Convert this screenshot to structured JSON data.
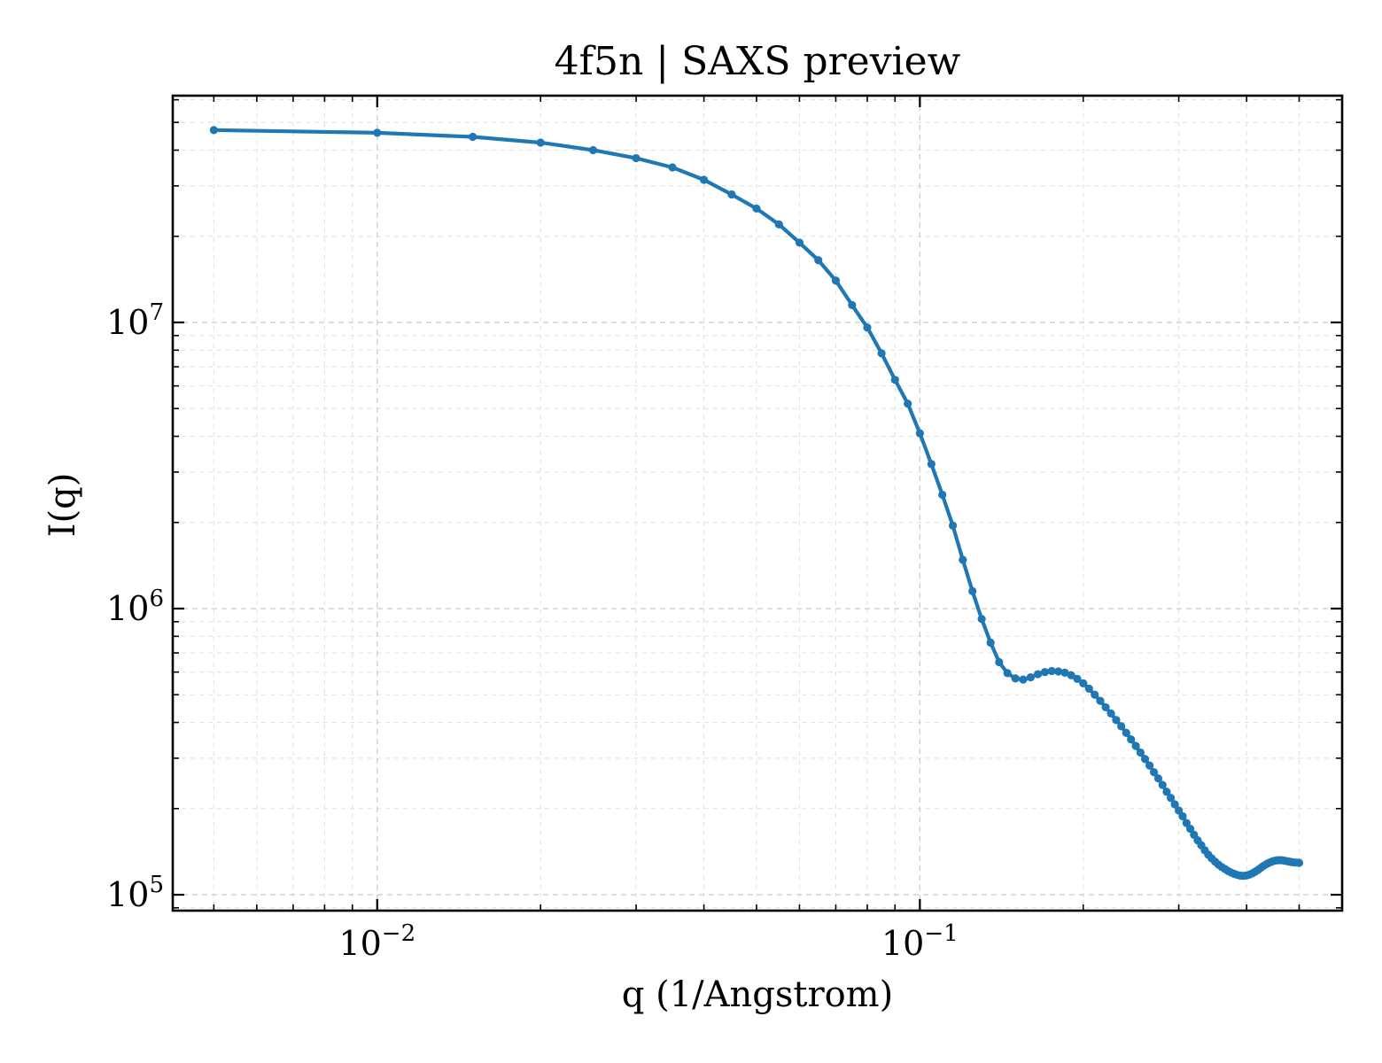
{
  "chart_data": {
    "type": "line",
    "title": "4f5n | SAXS preview",
    "xlabel": "q (1/Angstrom)",
    "ylabel": "I(q)",
    "xscale": "log",
    "yscale": "log",
    "xlim": [
      0.0042,
      0.6
    ],
    "ylim": [
      88000,
      62000000
    ],
    "grid": true,
    "legend": "none",
    "x_ticks": [
      {
        "value": 0.01,
        "base": "10",
        "exp": "−2"
      },
      {
        "value": 0.1,
        "base": "10",
        "exp": "−1"
      }
    ],
    "y_ticks": [
      {
        "value": 100000,
        "base": "10",
        "exp": "5"
      },
      {
        "value": 1000000,
        "base": "10",
        "exp": "6"
      },
      {
        "value": 10000000,
        "base": "10",
        "exp": "7"
      }
    ],
    "series": [
      {
        "color": "#1f77b4",
        "x": [
          0.005,
          0.01,
          0.015,
          0.02,
          0.025,
          0.03,
          0.035,
          0.04,
          0.045,
          0.05,
          0.055,
          0.06,
          0.065,
          0.07,
          0.075,
          0.08,
          0.085,
          0.09,
          0.095,
          0.1,
          0.105,
          0.11,
          0.115,
          0.12,
          0.125,
          0.13,
          0.135,
          0.14,
          0.145,
          0.15,
          0.155,
          0.16,
          0.165,
          0.17,
          0.175,
          0.18,
          0.185,
          0.19,
          0.195,
          0.2,
          0.205,
          0.21,
          0.215,
          0.22,
          0.225,
          0.23,
          0.235,
          0.24,
          0.245,
          0.25,
          0.255,
          0.26,
          0.265,
          0.27,
          0.275,
          0.28,
          0.285,
          0.29,
          0.295,
          0.3,
          0.305,
          0.31,
          0.315,
          0.32,
          0.325,
          0.33,
          0.335,
          0.34,
          0.345,
          0.35,
          0.355,
          0.36,
          0.365,
          0.37,
          0.375,
          0.38,
          0.385,
          0.39,
          0.395,
          0.4,
          0.405,
          0.41,
          0.415,
          0.42,
          0.425,
          0.43,
          0.435,
          0.44,
          0.445,
          0.45,
          0.455,
          0.46,
          0.465,
          0.47,
          0.475,
          0.48,
          0.485,
          0.49,
          0.495,
          0.5
        ],
        "y": [
          47000000,
          46000000,
          44500000,
          42500000,
          40000000,
          37500000,
          34800000,
          31500000,
          28000000,
          25000000,
          22000000,
          19000000,
          16500000,
          14000000,
          11500000,
          9600000,
          7800000,
          6300000,
          5200000,
          4100000,
          3200000,
          2500000,
          1950000,
          1480000,
          1150000,
          920000,
          760000,
          650000,
          595000,
          570000,
          565000,
          575000,
          590000,
          600000,
          605000,
          603000,
          597000,
          585000,
          568000,
          548000,
          525000,
          500000,
          476000,
          452000,
          430000,
          408000,
          388000,
          368000,
          349000,
          331000,
          314000,
          298000,
          283000,
          268000,
          255000,
          242000,
          229000,
          218000,
          207000,
          197000,
          188000,
          178000,
          170000,
          162000,
          155000,
          149000,
          143000,
          138000,
          134000,
          130500,
          127500,
          125000,
          123000,
          121000,
          119500,
          118200,
          117200,
          116600,
          116400,
          116800,
          117600,
          118800,
          120400,
          122200,
          124200,
          126200,
          127900,
          129300,
          130500,
          131400,
          131900,
          132100,
          132000,
          131500,
          131000,
          130500,
          130000,
          129700,
          129500,
          129300
        ]
      }
    ]
  }
}
